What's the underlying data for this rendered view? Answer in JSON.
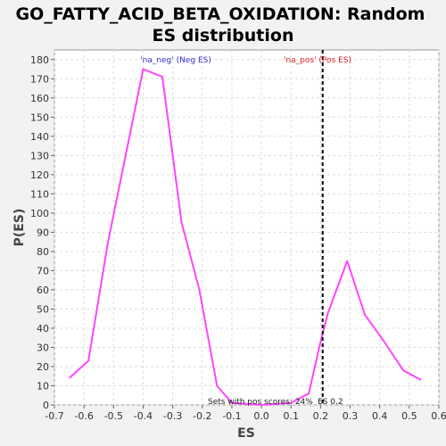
{
  "title_line1": "GO_FATTY_ACID_BETA_OXIDATION: Random",
  "title_line2": "ES distribution",
  "chart_data": {
    "type": "line",
    "title": "GO_FATTY_ACID_BETA_OXIDATION: Random ES distribution",
    "xlabel": "ES",
    "ylabel": "P(ES)",
    "xlim": [
      -0.7,
      0.6
    ],
    "ylim": [
      0,
      185
    ],
    "xticks": [
      -0.7,
      -0.6,
      -0.5,
      -0.4,
      -0.3,
      -0.2,
      -0.1,
      0.0,
      0.1,
      0.2,
      0.3,
      0.4,
      0.5,
      0.6
    ],
    "xtick_labels": [
      "-0.7",
      "-0.6",
      "-0.5",
      "-0.4",
      "-0.3",
      "-0.2",
      "-0.1",
      "0.0",
      "0.1",
      "0.2",
      "0.3",
      "0.4",
      "0.5",
      "0.6"
    ],
    "yticks": [
      0,
      10,
      20,
      30,
      40,
      50,
      60,
      70,
      80,
      90,
      100,
      110,
      120,
      130,
      140,
      150,
      160,
      170,
      180
    ],
    "grid": true,
    "series": [
      {
        "color": "#ff44ff",
        "x": [
          -0.65,
          -0.585,
          -0.52,
          -0.4,
          -0.335,
          -0.27,
          -0.21,
          -0.15,
          -0.1,
          0.0,
          0.1,
          0.16,
          0.2,
          0.225,
          0.29,
          0.35,
          0.415,
          0.48,
          0.54
        ],
        "y": [
          14,
          23,
          84,
          175,
          171,
          95,
          60,
          10,
          1,
          0,
          1,
          6,
          33,
          48,
          75,
          47,
          33,
          18,
          13
        ]
      }
    ],
    "reference_line": {
      "x": 0.207,
      "color": "#000000",
      "style": "dashed"
    },
    "annotations": {
      "neg_label": "'na_neg' (Neg ES)",
      "neg_color": "#3333cc",
      "pos_label": "'na_pos' (Pos ES)",
      "pos_color": "#dd2222",
      "footer": "Sets with pos scores: 24%",
      "es_label": "ES 0.2"
    }
  }
}
